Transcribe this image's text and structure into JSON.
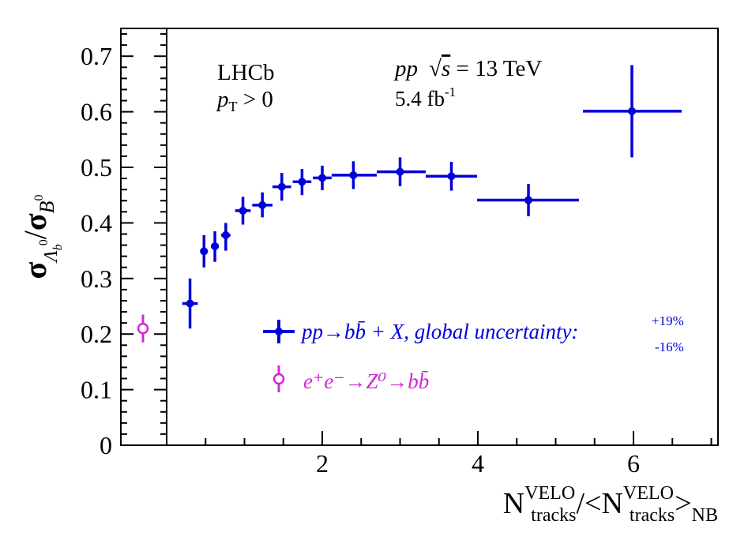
{
  "chart_data": {
    "type": "scatter",
    "x_ticks": [
      "2",
      "4",
      "6"
    ],
    "y_ticks": [
      "0",
      "0.1",
      "0.2",
      "0.3",
      "0.4",
      "0.5",
      "0.6",
      "0.7"
    ],
    "xlim": [
      0,
      7
    ],
    "ylim": [
      0,
      0.75
    ],
    "xlabel": {
      "n1": "N",
      "sup1": "VELO",
      "sub1": "tracks",
      "mid": "/<N",
      "sup2": "VELO",
      "sub2": "tracks",
      "close": ">",
      "sub3": "NB"
    },
    "ylabel": {
      "sigma1": "σ",
      "lambda_sub": "Λ",
      "lambda_sub_b": "b",
      "lambda_sup_0": "0",
      "slash": "/",
      "sigma2": "σ",
      "b_sub": "B",
      "b_sup_0": "0"
    },
    "annotations": {
      "experiment": "LHCb",
      "pt_p": "p",
      "pt_sub": "T",
      "pt_rest": " > 0",
      "pp": "pp",
      "sqrt": "√",
      "s": "s",
      "energy": " = 13 TeV",
      "lumi": "5.4 fb",
      "lumi_sup": "-1"
    },
    "legend": {
      "placement": "bottom-right",
      "blue_label": "pp→bb̄ + X, global uncertainty:",
      "blue_unc_up": "+19%",
      "blue_unc_down": "-16%",
      "magenta_label": "e⁺e⁻→Z⁰→bb̄"
    },
    "series": [
      {
        "name": "pp→bb̄ + X",
        "color": "#0000dd",
        "marker": "filled-circle",
        "points": [
          {
            "x": 0.3,
            "xlo": 0.2,
            "xhi": 0.4,
            "y": 0.255,
            "ylo": 0.21,
            "yhi": 0.3
          },
          {
            "x": 0.48,
            "xlo": 0.43,
            "xhi": 0.53,
            "y": 0.349,
            "ylo": 0.32,
            "yhi": 0.378
          },
          {
            "x": 0.62,
            "xlo": 0.57,
            "xhi": 0.67,
            "y": 0.358,
            "ylo": 0.33,
            "yhi": 0.385
          },
          {
            "x": 0.76,
            "xlo": 0.7,
            "xhi": 0.82,
            "y": 0.378,
            "ylo": 0.35,
            "yhi": 0.4
          },
          {
            "x": 0.98,
            "xlo": 0.88,
            "xhi": 1.08,
            "y": 0.422,
            "ylo": 0.397,
            "yhi": 0.447
          },
          {
            "x": 1.23,
            "xlo": 1.1,
            "xhi": 1.36,
            "y": 0.432,
            "ylo": 0.41,
            "yhi": 0.455
          },
          {
            "x": 1.48,
            "xlo": 1.36,
            "xhi": 1.6,
            "y": 0.465,
            "ylo": 0.44,
            "yhi": 0.49
          },
          {
            "x": 1.74,
            "xlo": 1.62,
            "xhi": 1.86,
            "y": 0.474,
            "ylo": 0.45,
            "yhi": 0.497
          },
          {
            "x": 2.0,
            "xlo": 1.88,
            "xhi": 2.12,
            "y": 0.481,
            "ylo": 0.459,
            "yhi": 0.503
          },
          {
            "x": 2.4,
            "xlo": 2.12,
            "xhi": 2.7,
            "y": 0.486,
            "ylo": 0.461,
            "yhi": 0.511
          },
          {
            "x": 3.0,
            "xlo": 2.7,
            "xhi": 3.33,
            "y": 0.492,
            "ylo": 0.466,
            "yhi": 0.518
          },
          {
            "x": 3.66,
            "xlo": 3.33,
            "xhi": 3.99,
            "y": 0.484,
            "ylo": 0.458,
            "yhi": 0.51
          },
          {
            "x": 4.65,
            "xlo": 3.99,
            "xhi": 5.3,
            "y": 0.441,
            "ylo": 0.412,
            "yhi": 0.47
          },
          {
            "x": 5.98,
            "xlo": 5.35,
            "xhi": 6.62,
            "y": 0.601,
            "ylo": 0.518,
            "yhi": 0.684
          }
        ]
      },
      {
        "name": "e⁺e⁻→Z⁰→bb̄",
        "color": "#d028d8",
        "marker": "open-circle",
        "points": [
          {
            "position": "left-panel",
            "y": 0.21,
            "ylo": 0.185,
            "yhi": 0.235
          }
        ]
      }
    ]
  }
}
